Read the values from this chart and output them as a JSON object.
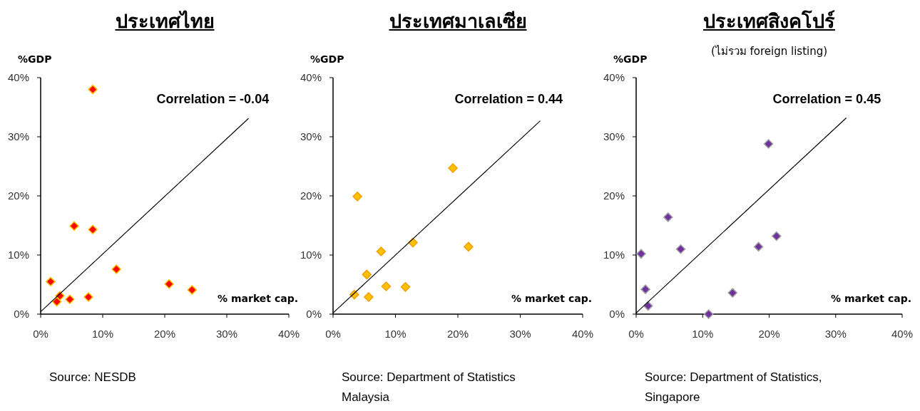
{
  "chart_data": [
    {
      "type": "scatter",
      "title": "ประเทศไทย",
      "ylabel": "%GDP",
      "xlabel": "% market cap.",
      "marker": "diamond",
      "xlim": [
        0,
        40
      ],
      "ylim": [
        0,
        40
      ],
      "xticks": [
        {
          "value": 0,
          "label": "0%"
        },
        {
          "value": 10,
          "label": "10%"
        },
        {
          "value": 20,
          "label": "20%"
        },
        {
          "value": 30,
          "label": "30%"
        },
        {
          "value": 40,
          "label": "40%"
        }
      ],
      "yticks": [
        {
          "value": 0,
          "label": "0%"
        },
        {
          "value": 10,
          "label": "10%"
        },
        {
          "value": 20,
          "label": "20%"
        },
        {
          "value": 30,
          "label": "30%"
        },
        {
          "value": 40,
          "label": "40%"
        }
      ],
      "annotations": [
        "Correlation  = -0.04",
        "Source: NESDB"
      ],
      "series": [
        {
          "type": "scatter",
          "color": "#ff0000",
          "x": [
            8.4,
            5.4,
            8.4,
            1.6,
            12.2,
            20.7,
            24.4,
            3.1,
            2.6,
            4.7,
            7.7
          ],
          "values": [
            38.0,
            14.9,
            14.3,
            5.5,
            7.6,
            5.1,
            4.1,
            3.1,
            2.1,
            2.5,
            2.9
          ]
        },
        {
          "type": "line",
          "color": "#000000",
          "marker": "none",
          "x": [
            0,
            33.5
          ],
          "values": [
            0.4,
            33.1
          ]
        }
      ]
    },
    {
      "type": "scatter",
      "title": "ประเทศมาเลเซีย",
      "ylabel": "%GDP",
      "xlabel": "% market cap.",
      "marker": "diamond",
      "xlim": [
        0,
        40
      ],
      "ylim": [
        0,
        40
      ],
      "xticks": [
        {
          "value": 0,
          "label": "0%"
        },
        {
          "value": 10,
          "label": "10%"
        },
        {
          "value": 20,
          "label": "20%"
        },
        {
          "value": 30,
          "label": "30%"
        },
        {
          "value": 40,
          "label": "40%"
        }
      ],
      "yticks": [
        {
          "value": 0,
          "label": "0%"
        },
        {
          "value": 10,
          "label": "10%"
        },
        {
          "value": 20,
          "label": "20%"
        },
        {
          "value": 30,
          "label": "30%"
        },
        {
          "value": 40,
          "label": "40%"
        }
      ],
      "annotations": [
        "Correlation  = 0.44",
        "Source: Department of Statistics Malaysia"
      ],
      "series": [
        {
          "type": "scatter",
          "color": "#ffc000",
          "x": [
            3.9,
            19.2,
            7.7,
            12.8,
            21.7,
            5.4,
            8.5,
            11.6,
            3.4,
            5.7
          ],
          "values": [
            19.9,
            24.7,
            10.6,
            12.1,
            11.4,
            6.7,
            4.7,
            4.6,
            3.3,
            2.9
          ]
        },
        {
          "type": "line",
          "color": "#000000",
          "marker": "none",
          "x": [
            0,
            33.2
          ],
          "values": [
            0.2,
            32.7
          ]
        }
      ]
    },
    {
      "type": "scatter",
      "title": "ประเทศสิงคโปร์",
      "subtitle": "(ไม่รวม foreign listing)",
      "ylabel": "%GDP",
      "xlabel": "% market cap.",
      "marker": "diamond",
      "xlim": [
        0,
        40
      ],
      "ylim": [
        0,
        40
      ],
      "xticks": [
        {
          "value": 0,
          "label": "0%"
        },
        {
          "value": 10,
          "label": "10%"
        },
        {
          "value": 20,
          "label": "20%"
        },
        {
          "value": 30,
          "label": "30%"
        },
        {
          "value": 40,
          "label": "40%"
        }
      ],
      "yticks": [
        {
          "value": 0,
          "label": "0%"
        },
        {
          "value": 10,
          "label": "10%"
        },
        {
          "value": 20,
          "label": "20%"
        },
        {
          "value": 30,
          "label": "30%"
        },
        {
          "value": 40,
          "label": "40%"
        }
      ],
      "annotations": [
        "Correlation = 0.45",
        "Source: Department of Statistics, Singapore"
      ],
      "series": [
        {
          "type": "scatter",
          "color": "#7030a0",
          "x": [
            0.75,
            1.4,
            1.8,
            4.8,
            6.7,
            10.9,
            14.5,
            18.4,
            21.1,
            19.9
          ],
          "values": [
            10.2,
            4.2,
            1.4,
            16.4,
            11.0,
            0.0,
            3.6,
            11.4,
            13.2,
            28.8
          ]
        },
        {
          "type": "line",
          "color": "#000000",
          "marker": "none",
          "x": [
            0,
            31.6
          ],
          "values": [
            0.2,
            33.2
          ]
        }
      ]
    }
  ]
}
